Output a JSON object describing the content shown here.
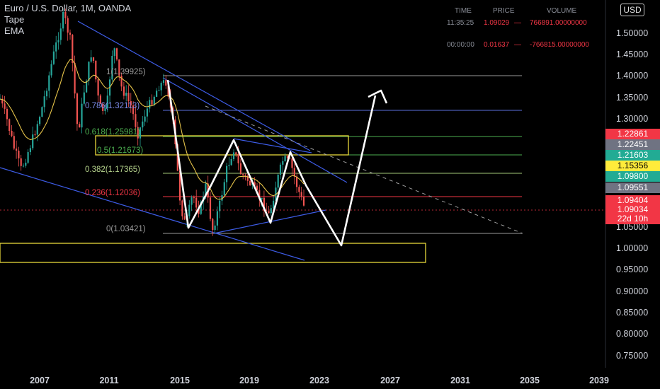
{
  "header": {
    "symbol": "Euro / U.S. Dollar, 1M, OANDA",
    "indicator_1": "Tape",
    "indicator_2": "EMA"
  },
  "tape": {
    "columns": [
      "TIME",
      "PRICE",
      "VOLUME"
    ],
    "rows": [
      {
        "time": "11:35:25",
        "price": "1.09029",
        "price_arrow": "—",
        "volume": "766891.00000000"
      },
      {
        "time": "00:00:00",
        "price": "0.01637",
        "price_arrow": "—",
        "volume": "-766815.00000000"
      }
    ]
  },
  "currency_button": "USD",
  "price_axis": {
    "labels": [
      "1.50000",
      "1.45000",
      "1.40000",
      "1.35000",
      "1.30000",
      "1.05000",
      "1.00000",
      "0.95000",
      "0.90000",
      "0.85000",
      "0.80000",
      "0.75000"
    ],
    "tags": [
      {
        "text": "1.22861",
        "color": "#f23645"
      },
      {
        "text": "1.22451",
        "color": "#6f7382"
      },
      {
        "text": "1.21603",
        "color": "#22ab94"
      },
      {
        "text": "1.15356",
        "color": "#ffeb3b"
      },
      {
        "text": "1.09800",
        "color": "#22ab94"
      },
      {
        "text": "1.09551",
        "color": "#6f7382"
      },
      {
        "text": "1.09404",
        "color": "#f23645"
      },
      {
        "text": "1.09034",
        "color": "#f23645"
      },
      {
        "text": "22d 10h",
        "color": "#f23645"
      }
    ]
  },
  "time_axis": {
    "labels": [
      "2007",
      "2011",
      "2015",
      "2019",
      "2023",
      "2027",
      "2031",
      "2035",
      "2039"
    ]
  },
  "fibonacci": [
    {
      "label": "1(1.39925)",
      "color": "#9a9a9a"
    },
    {
      "label": "0.786(1.32113)",
      "color": "#5b6fdc"
    },
    {
      "label": "0.618(1.25981)",
      "color": "#4caf50"
    },
    {
      "label": "0.5(1.21673)",
      "color": "#4caf50"
    },
    {
      "label": "0.382(1.17365)",
      "color": "#a5c878"
    },
    {
      "label": "0.236(1.12036)",
      "color": "#f23645"
    },
    {
      "label": "0(1.03421)",
      "color": "#9a9a9a"
    }
  ]
}
